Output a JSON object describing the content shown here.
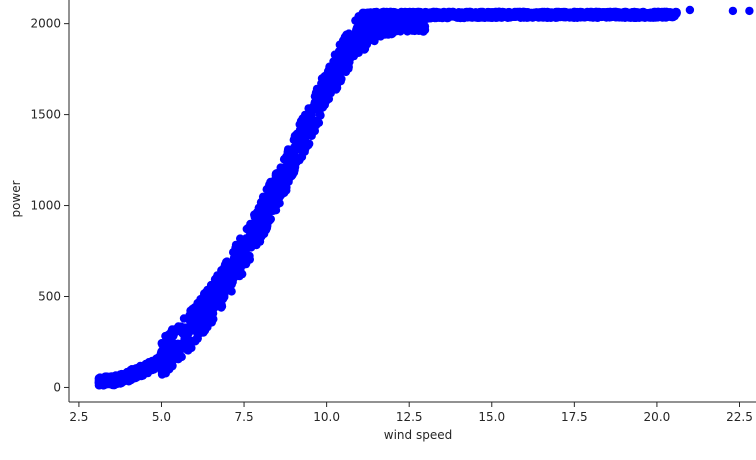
{
  "chart_data": {
    "type": "scatter",
    "xlabel": "wind speed",
    "ylabel": "power",
    "xlim": [
      2.2,
      23.0
    ],
    "ylim": [
      -80,
      2130
    ],
    "xticks": [
      2.5,
      5.0,
      7.5,
      10.0,
      12.5,
      15.0,
      17.5,
      20.0,
      22.5
    ],
    "xtick_labels": [
      "2.5",
      "5.0",
      "7.5",
      "10.0",
      "12.5",
      "15.0",
      "17.5",
      "20.0",
      "22.5"
    ],
    "yticks": [
      0,
      500,
      1000,
      1500,
      2000
    ],
    "ytick_labels": [
      "0",
      "500",
      "1000",
      "1500",
      "2000"
    ],
    "grid": false,
    "marker_color": "#0000ff",
    "series": [
      {
        "x": [
          3.1,
          3.3,
          3.5,
          3.7,
          3.9,
          4.1,
          4.3,
          4.5,
          4.7,
          4.9,
          5.1,
          5.3,
          5.5,
          5.7,
          5.9,
          6.1,
          6.3,
          6.5,
          6.7,
          6.9,
          7.1,
          7.3,
          7.5,
          7.7,
          7.9,
          8.1,
          8.3,
          8.5,
          8.7,
          8.9,
          9.1,
          9.3,
          9.5,
          9.7,
          9.9,
          10.1,
          10.3,
          10.5,
          10.7,
          10.9,
          11.1,
          11.3,
          11.5,
          11.7,
          11.9,
          12.1,
          12.3,
          12.6,
          12.9,
          13.2,
          13.5,
          13.8,
          14.2,
          14.6,
          15.0,
          15.5,
          16.0,
          16.5,
          17.0,
          17.5,
          18.0,
          18.5,
          19.0,
          19.5,
          20.0,
          20.5,
          21.0,
          22.3,
          22.8
        ],
        "y": [
          25,
          30,
          35,
          45,
          55,
          70,
          85,
          100,
          120,
          145,
          175,
          205,
          240,
          280,
          320,
          365,
          410,
          460,
          515,
          570,
          630,
          690,
          750,
          815,
          880,
          950,
          1020,
          1090,
          1160,
          1235,
          1310,
          1385,
          1460,
          1535,
          1610,
          1680,
          1750,
          1815,
          1870,
          1920,
          1960,
          1990,
          2010,
          2020,
          2030,
          2035,
          2040,
          2045,
          2045,
          2047,
          2048,
          2048,
          2049,
          2049,
          2050,
          2050,
          2050,
          2050,
          2050,
          2050,
          2050,
          2050,
          2050,
          2050,
          2050,
          2050,
          2075,
          2070,
          2070
        ]
      }
    ]
  }
}
